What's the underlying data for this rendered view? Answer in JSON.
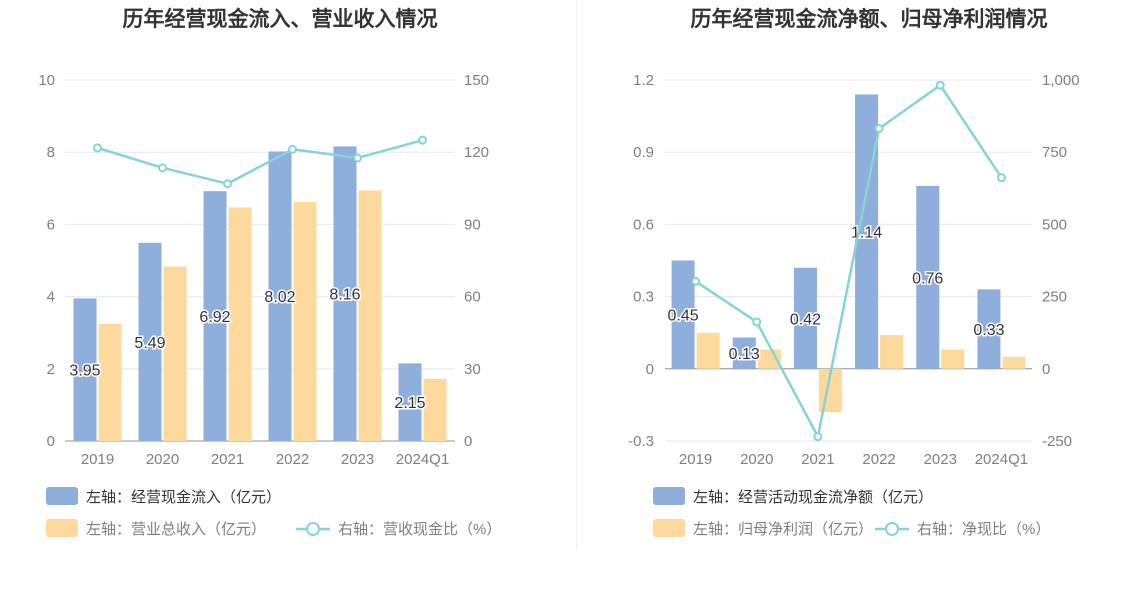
{
  "colors": {
    "bar_primary": "#8eaedc",
    "bar_secondary": "#fed99d",
    "line": "#86d3d8",
    "grid": "#e3e8f2",
    "axis_text": "#7f7f7f",
    "title": "#333333",
    "label": "#333333"
  },
  "chart_data": [
    {
      "type": "bar",
      "title": "历年经营现金流入、营业收入情况",
      "categories": [
        "2019",
        "2020",
        "2021",
        "2022",
        "2023",
        "2024Q1"
      ],
      "y_left": {
        "min": 0,
        "max": 10,
        "ticks": [
          "0",
          "2",
          "4",
          "6",
          "8",
          "10"
        ]
      },
      "y_right": {
        "min": 0,
        "max": 150,
        "ticks": [
          "0",
          "30",
          "60",
          "90",
          "120",
          "150"
        ]
      },
      "series": [
        {
          "name": "左轴：经营现金流入（亿元）",
          "kind": "bar",
          "axis": "left",
          "values": [
            3.95,
            5.49,
            6.92,
            8.02,
            8.16,
            2.15
          ],
          "labels": [
            "3.95",
            "5.49",
            "6.92",
            "8.02",
            "8.16",
            "2.15"
          ]
        },
        {
          "name": "左轴：营业总收入（亿元）",
          "kind": "bar",
          "axis": "left",
          "values": [
            3.24,
            4.83,
            6.47,
            6.62,
            6.94,
            1.72
          ]
        },
        {
          "name": "右轴：营收现金比（%）",
          "kind": "line",
          "axis": "right",
          "values": [
            121.8,
            113.5,
            106.9,
            121.2,
            117.6,
            125.0
          ]
        }
      ]
    },
    {
      "type": "bar",
      "title": "历年经营现金流净额、归母净利润情况",
      "categories": [
        "2019",
        "2020",
        "2021",
        "2022",
        "2023",
        "2024Q1"
      ],
      "y_left": {
        "min": -0.3,
        "max": 1.2,
        "ticks": [
          "-0.3",
          "0",
          "0.3",
          "0.6",
          "0.9",
          "1.2"
        ]
      },
      "y_right": {
        "min": -250,
        "max": 1000,
        "ticks": [
          "-250",
          "0",
          "250",
          "500",
          "750",
          "1,000"
        ]
      },
      "series": [
        {
          "name": "左轴：经营活动现金流净额（亿元）",
          "kind": "bar",
          "axis": "left",
          "values": [
            0.45,
            0.13,
            0.42,
            1.14,
            0.76,
            0.33
          ],
          "labels": [
            "0.45",
            "0.13",
            "0.42",
            "1.14",
            "0.76",
            "0.33"
          ]
        },
        {
          "name": "左轴：归母净利润（亿元）",
          "kind": "bar",
          "axis": "left",
          "values": [
            0.15,
            0.08,
            -0.18,
            0.14,
            0.08,
            0.05
          ]
        },
        {
          "name": "右轴：净现比（%）",
          "kind": "line",
          "axis": "right",
          "values": [
            303,
            162,
            -235,
            832,
            982,
            662
          ]
        }
      ]
    }
  ]
}
